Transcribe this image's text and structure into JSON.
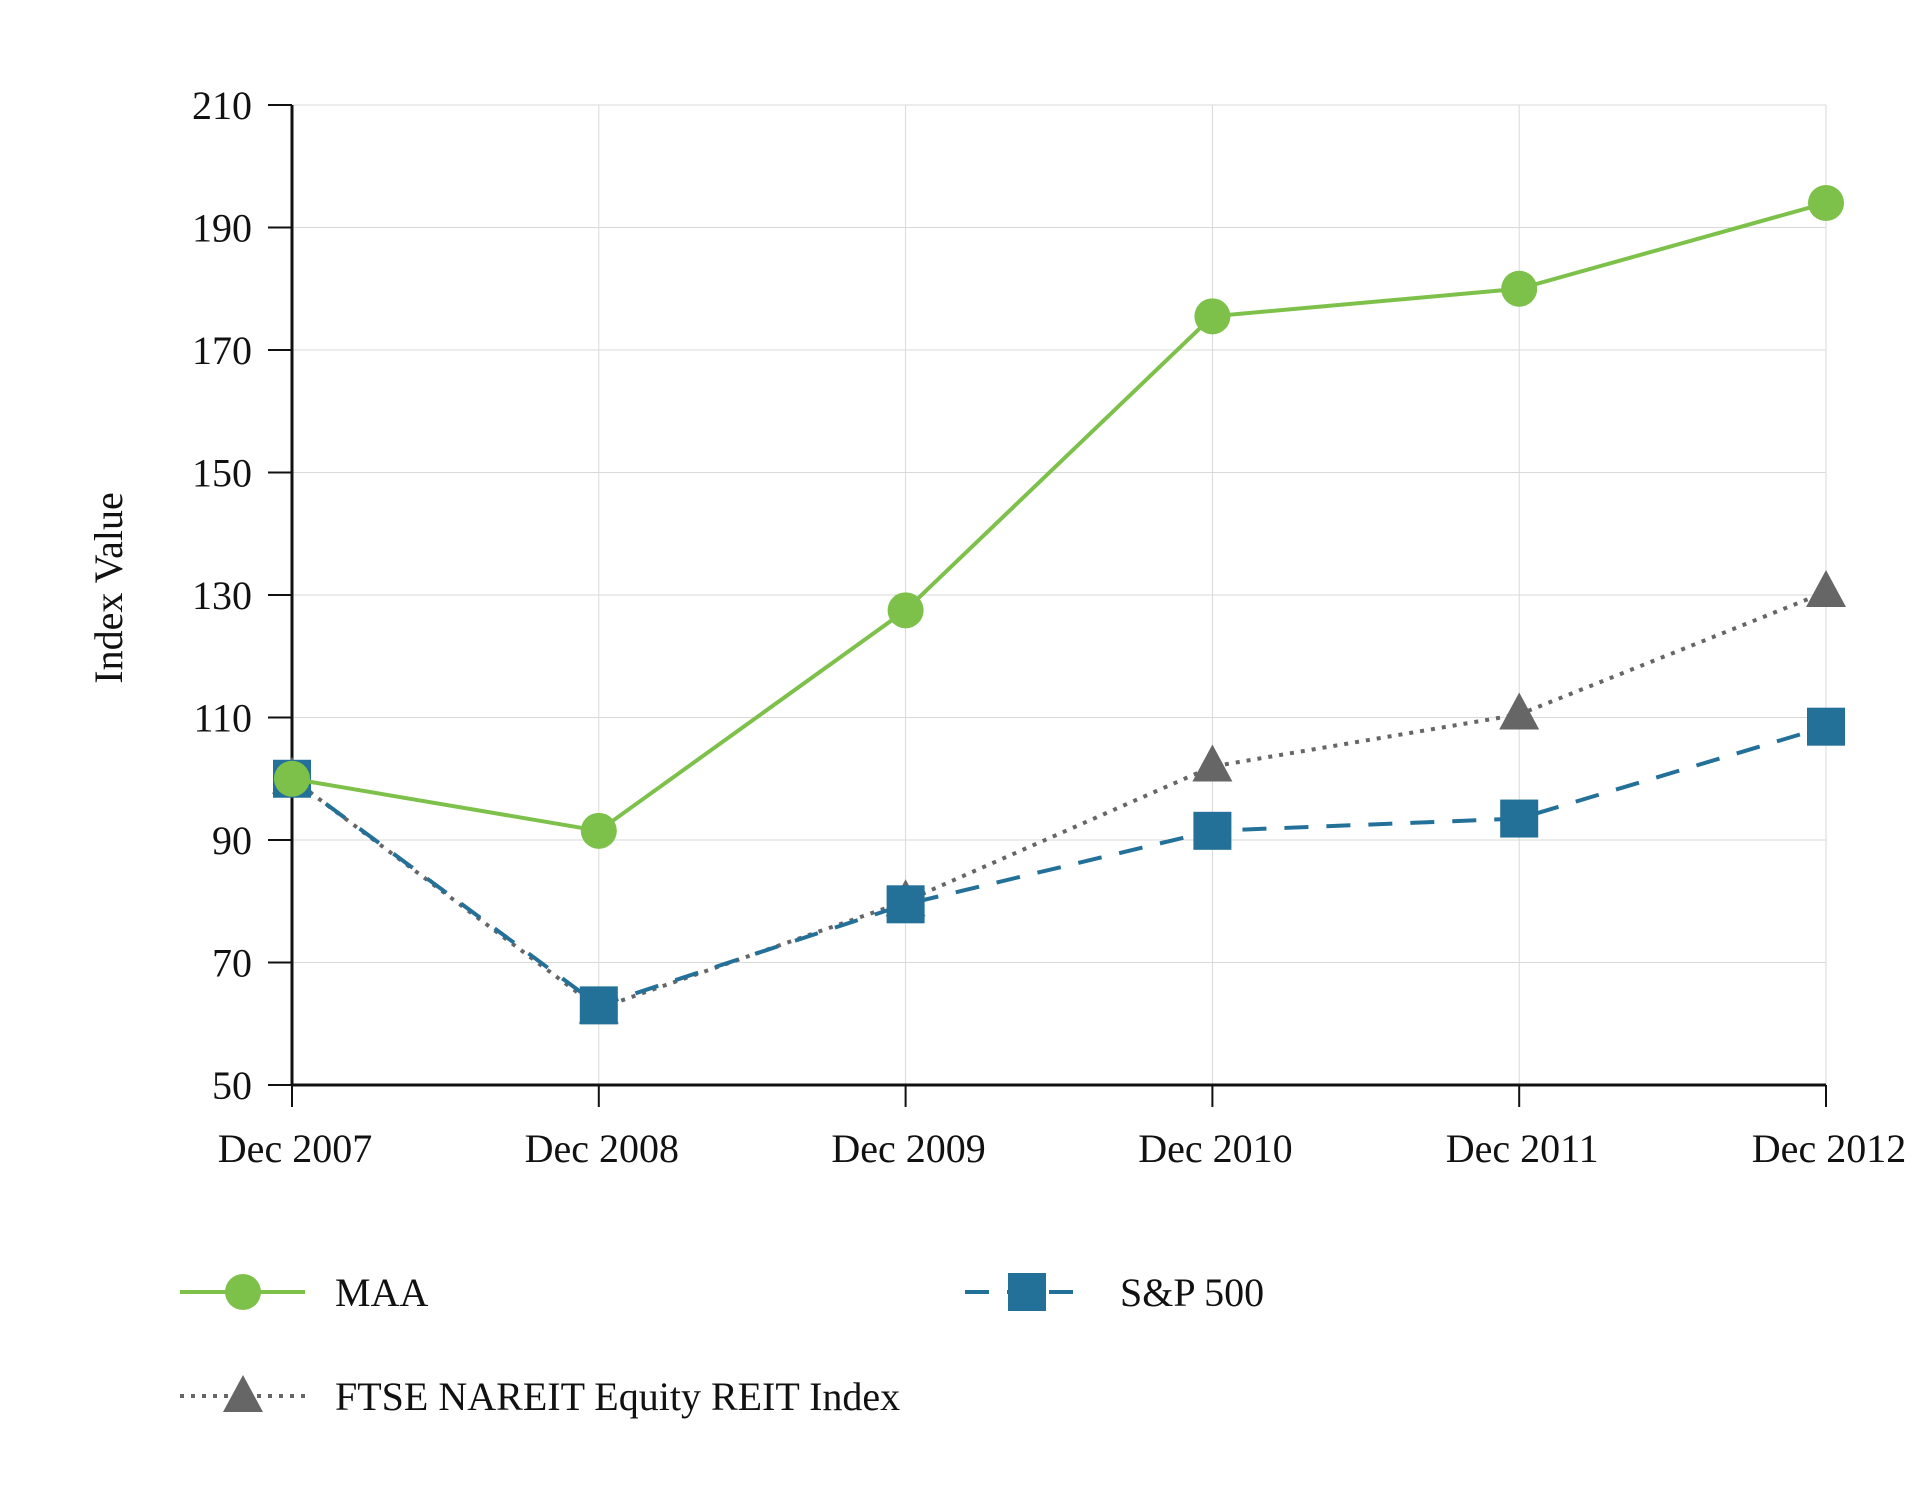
{
  "chart_data": {
    "type": "line",
    "title": "",
    "xlabel": "",
    "ylabel": "Index Value",
    "categories": [
      "Dec 2007",
      "Dec 2008",
      "Dec 2009",
      "Dec 2010",
      "Dec 2011",
      "Dec 2012"
    ],
    "ylim": [
      50,
      210
    ],
    "yticks": [
      50,
      70,
      90,
      110,
      130,
      150,
      170,
      190,
      210
    ],
    "grid": true,
    "legend_position": "bottom",
    "series": [
      {
        "name": "MAA",
        "values": [
          100,
          91.5,
          127.5,
          175.5,
          180,
          194
        ],
        "color": "#7dc14b",
        "marker": "circle",
        "line_style": "solid"
      },
      {
        "name": "S&P 500",
        "values": [
          100,
          63,
          79.5,
          91.5,
          93.5,
          108.5
        ],
        "color": "#237099",
        "marker": "square",
        "line_style": "dashed"
      },
      {
        "name": "FTSE NAREIT Equity REIT Index",
        "values": [
          100,
          62.5,
          80,
          102,
          110.5,
          130.5
        ],
        "color": "#666666",
        "marker": "triangle",
        "line_style": "dotted"
      }
    ]
  }
}
